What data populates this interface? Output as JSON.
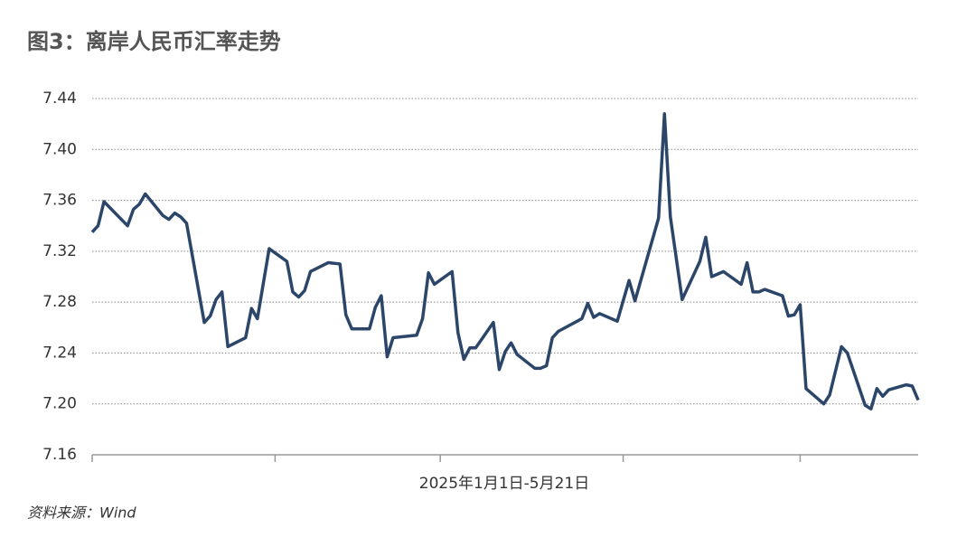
{
  "chart_data": {
    "type": "line",
    "title": "图3：离岸人民币汇率走势",
    "x_label": "2025年1月1日-5月21日",
    "source": "资料来源：Wind",
    "x": [
      0,
      1,
      2,
      6,
      7,
      8,
      9,
      12,
      13,
      14,
      15,
      16,
      19,
      20,
      21,
      22,
      23,
      26,
      27,
      28,
      30,
      33,
      34,
      35,
      36,
      37,
      40,
      42,
      43,
      44,
      47,
      48,
      49,
      50,
      51,
      55,
      56,
      57,
      58,
      61,
      62,
      63,
      64,
      65,
      68,
      69,
      70,
      71,
      72,
      75,
      76,
      77,
      78,
      79,
      83,
      84,
      85,
      86,
      89,
      91,
      92,
      96,
      97,
      98,
      100,
      103,
      104,
      105,
      107,
      110,
      111,
      112,
      113,
      114,
      117,
      118,
      119,
      120,
      121,
      124,
      125,
      126,
      127,
      128,
      131,
      132,
      133,
      134,
      135,
      138,
      139,
      140
    ],
    "series": [
      {
        "name": null,
        "color": "#2c4669",
        "values": [
          7.335,
          7.34,
          7.359,
          7.34,
          7.353,
          7.357,
          7.365,
          7.348,
          7.345,
          7.35,
          7.347,
          7.342,
          7.264,
          7.269,
          7.282,
          7.288,
          7.245,
          7.252,
          7.275,
          7.267,
          7.322,
          7.312,
          7.288,
          7.284,
          7.289,
          7.304,
          7.311,
          7.31,
          7.27,
          7.259,
          7.259,
          7.276,
          7.285,
          7.237,
          7.252,
          7.254,
          7.267,
          7.303,
          7.294,
          7.304,
          7.256,
          7.235,
          7.244,
          7.244,
          7.264,
          7.227,
          7.241,
          7.248,
          7.239,
          7.228,
          7.228,
          7.23,
          7.252,
          7.257,
          7.267,
          7.279,
          7.268,
          7.271,
          7.265,
          7.297,
          7.281,
          7.346,
          7.428,
          7.347,
          7.282,
          7.312,
          7.331,
          7.3,
          7.304,
          7.294,
          7.311,
          7.288,
          7.288,
          7.29,
          7.285,
          7.269,
          7.27,
          7.278,
          7.212,
          7.2,
          7.207,
          7.226,
          7.245,
          7.24,
          7.199,
          7.196,
          7.212,
          7.206,
          7.211,
          7.215,
          7.214,
          7.203
        ]
      }
    ],
    "xlim": [
      0,
      140
    ],
    "xticks": [
      31,
      59,
      90,
      120
    ],
    "ylim": [
      7.16,
      7.44
    ],
    "yticks": [
      {
        "value": 7.16,
        "label": "7.16"
      },
      {
        "value": 7.2,
        "label": "7.20"
      },
      {
        "value": 7.24,
        "label": "7.24"
      },
      {
        "value": 7.28,
        "label": "7.28"
      },
      {
        "value": 7.32,
        "label": "7.32"
      },
      {
        "value": 7.36,
        "label": "7.36"
      },
      {
        "value": 7.4,
        "label": "7.40"
      },
      {
        "value": 7.44,
        "label": "7.44"
      }
    ],
    "grid": true
  }
}
